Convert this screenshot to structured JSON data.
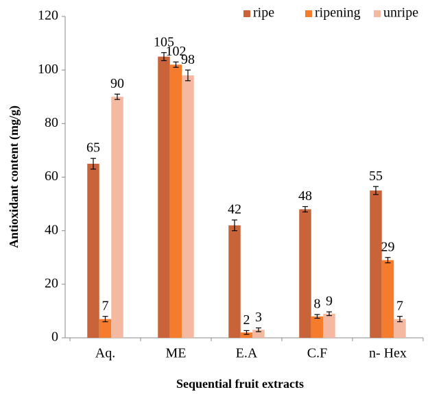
{
  "chart_data": {
    "type": "bar",
    "y_label": "Antioxidant content (mg/g)",
    "x_label": "Sequential fruit extracts",
    "categories": [
      "Aq.",
      "ME",
      "E.A",
      "C.F",
      "n- Hex"
    ],
    "series": [
      {
        "name": "ripe",
        "color": "#c9643a",
        "values": [
          65,
          105,
          42,
          48,
          55
        ],
        "errors": [
          2,
          1.5,
          2,
          1,
          1.5
        ]
      },
      {
        "name": "ripening",
        "color": "#f47c2c",
        "values": [
          7,
          102,
          2,
          8,
          29
        ],
        "errors": [
          1,
          1,
          0.7,
          0.7,
          1
        ]
      },
      {
        "name": "unripe",
        "color": "#f5b9a2",
        "values": [
          90,
          98,
          3,
          9,
          7
        ],
        "errors": [
          1,
          2,
          0.7,
          0.7,
          1
        ]
      }
    ],
    "ylim": [
      0,
      120
    ],
    "yticks": [
      0,
      20,
      40,
      60,
      80,
      100,
      120
    ],
    "legend": "top-right"
  }
}
